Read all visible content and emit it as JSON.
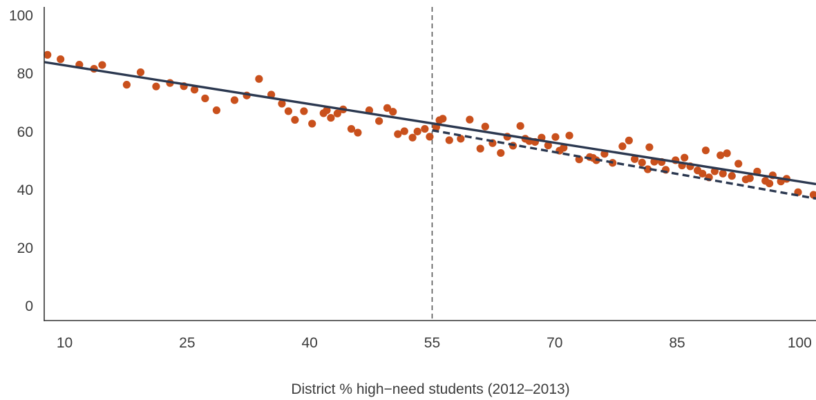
{
  "chart_data": {
    "type": "scatter",
    "title": "",
    "xlabel": "District % high−need students (2012–2013)",
    "ylabel": "",
    "xlim": [
      7.5,
      102
    ],
    "ylim": [
      -5,
      103
    ],
    "xticks": [
      10,
      25,
      40,
      55,
      70,
      85,
      100
    ],
    "yticks": [
      0,
      20,
      40,
      60,
      80,
      100
    ],
    "grid": false,
    "colors": {
      "points": "#c9501c",
      "trend": "#2b3850",
      "reference": "#555555",
      "axis": "#333333"
    },
    "reference_line": {
      "x": 55,
      "style": "dashed"
    },
    "trend_lines": [
      {
        "style": "solid",
        "x": [
          7.5,
          102
        ],
        "y": [
          84,
          42
        ]
      },
      {
        "style": "dashed",
        "x": [
          55,
          102
        ],
        "y": [
          60.5,
          37
        ]
      }
    ],
    "points": [
      [
        7.9,
        86.5
      ],
      [
        9.5,
        85
      ],
      [
        11.8,
        83.1
      ],
      [
        13.6,
        81.7
      ],
      [
        14.6,
        83
      ],
      [
        17.6,
        76.2
      ],
      [
        19.3,
        80.5
      ],
      [
        21.2,
        75.6
      ],
      [
        22.9,
        76.8
      ],
      [
        24.6,
        75.7
      ],
      [
        25.9,
        74.5
      ],
      [
        27.2,
        71.5
      ],
      [
        28.6,
        67.4
      ],
      [
        30.8,
        70.9
      ],
      [
        32.3,
        72.5
      ],
      [
        33.8,
        78.2
      ],
      [
        35.3,
        72.8
      ],
      [
        36.6,
        69.7
      ],
      [
        37.4,
        67.1
      ],
      [
        38.2,
        64.1
      ],
      [
        39.3,
        67.1
      ],
      [
        40.3,
        62.8
      ],
      [
        41.7,
        66.4
      ],
      [
        42.1,
        67.4
      ],
      [
        42.6,
        64.8
      ],
      [
        43.4,
        66.3
      ],
      [
        44.1,
        67.7
      ],
      [
        45.1,
        61
      ],
      [
        45.9,
        59.7
      ],
      [
        47.3,
        67.4
      ],
      [
        48.5,
        63.7
      ],
      [
        49.5,
        68.2
      ],
      [
        50.2,
        66.9
      ],
      [
        50.8,
        59.2
      ],
      [
        51.6,
        60.2
      ],
      [
        52.6,
        58
      ],
      [
        53.2,
        60.1
      ],
      [
        54.1,
        61
      ],
      [
        54.7,
        58.3
      ],
      [
        55.5,
        61.6
      ],
      [
        55.9,
        64
      ],
      [
        56.3,
        64.5
      ],
      [
        57.1,
        57.1
      ],
      [
        58.5,
        57.6
      ],
      [
        59.6,
        64.2
      ],
      [
        60.9,
        54.2
      ],
      [
        61.5,
        61.8
      ],
      [
        62.4,
        56.1
      ],
      [
        63.4,
        52.7
      ],
      [
        64.2,
        58.3
      ],
      [
        64.9,
        55.2
      ],
      [
        65.8,
        62
      ],
      [
        66.4,
        57.6
      ],
      [
        66.9,
        56.8
      ],
      [
        67.6,
        56.5
      ],
      [
        68.4,
        58
      ],
      [
        69.2,
        55.3
      ],
      [
        70.1,
        58.2
      ],
      [
        70.6,
        53.5
      ],
      [
        71.1,
        54.5
      ],
      [
        71.8,
        58.7
      ],
      [
        73,
        50.5
      ],
      [
        74.3,
        51.3
      ],
      [
        74.7,
        51
      ],
      [
        75.1,
        50.2
      ],
      [
        76.1,
        52.4
      ],
      [
        77.1,
        49.3
      ],
      [
        78.3,
        55
      ],
      [
        79.1,
        57
      ],
      [
        79.8,
        50.6
      ],
      [
        80.7,
        49.4
      ],
      [
        81.4,
        47.1
      ],
      [
        81.6,
        54.7
      ],
      [
        82.2,
        49.7
      ],
      [
        83.1,
        49.6
      ],
      [
        83.6,
        46.9
      ],
      [
        84.8,
        50.2
      ],
      [
        85.6,
        48.4
      ],
      [
        85.9,
        51.1
      ],
      [
        86.6,
        48.1
      ],
      [
        87.5,
        46.7
      ],
      [
        88.1,
        45.6
      ],
      [
        88.5,
        53.6
      ],
      [
        88.9,
        44.3
      ],
      [
        89.6,
        46.4
      ],
      [
        90.3,
        51.9
      ],
      [
        90.6,
        45.6
      ],
      [
        91.1,
        52.6
      ],
      [
        91.7,
        44.8
      ],
      [
        92.5,
        49
      ],
      [
        93.4,
        43.6
      ],
      [
        93.9,
        44
      ],
      [
        94.8,
        46.3
      ],
      [
        95.8,
        43.1
      ],
      [
        96.3,
        42.2
      ],
      [
        96.7,
        45
      ],
      [
        97.7,
        42.9
      ],
      [
        98.4,
        43.8
      ],
      [
        99.8,
        39.2
      ],
      [
        101.7,
        38.3
      ]
    ]
  }
}
